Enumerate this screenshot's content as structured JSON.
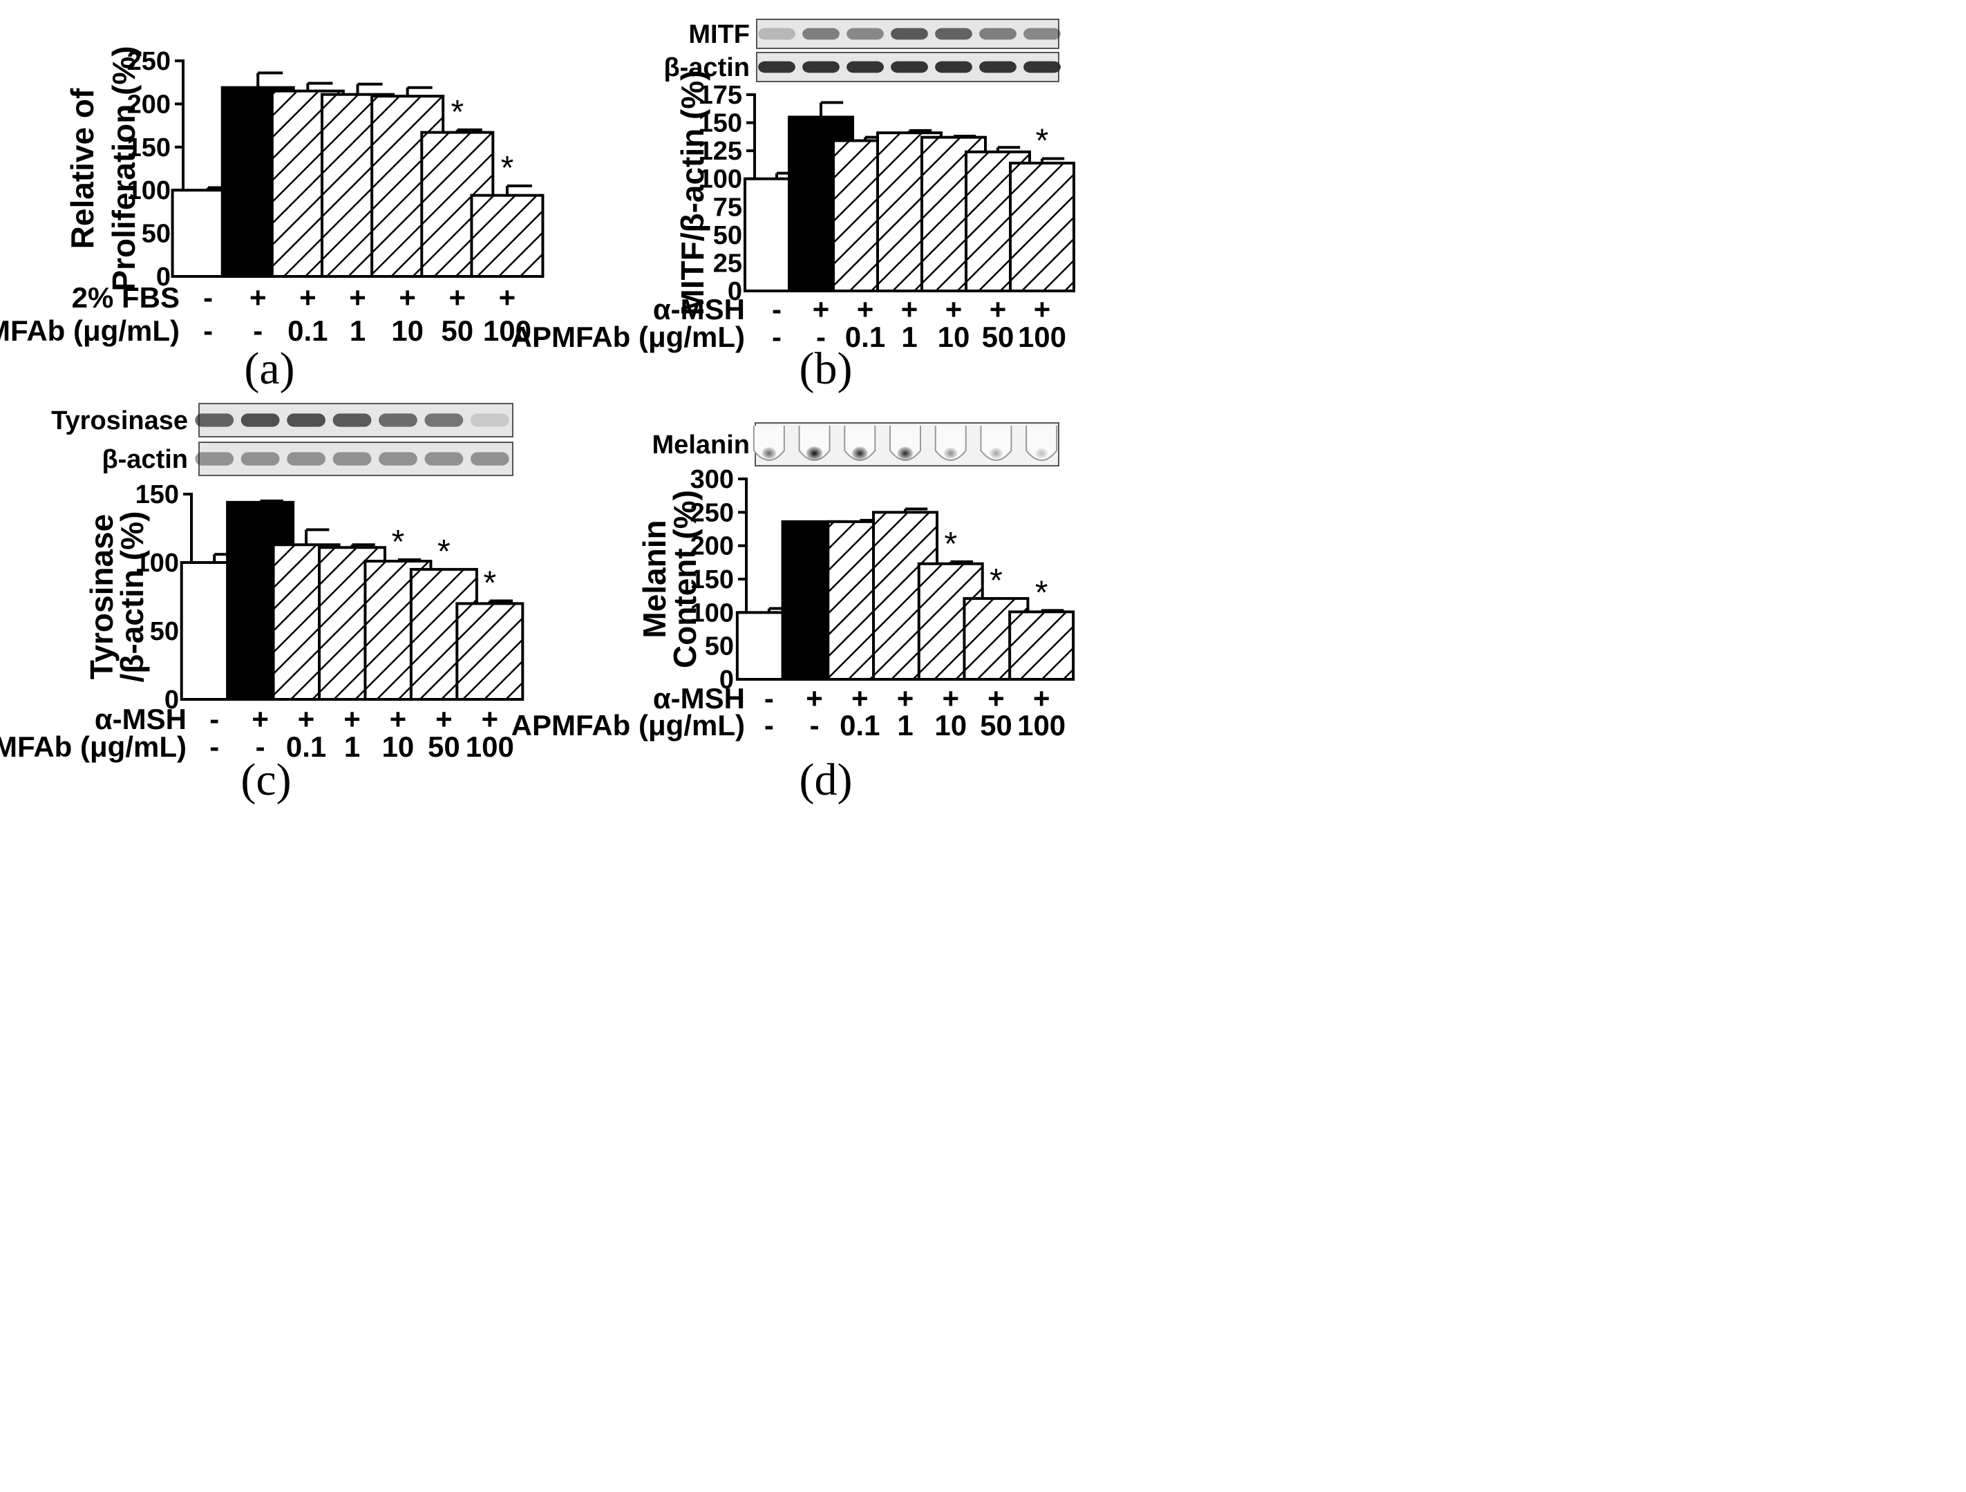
{
  "colors": {
    "ink": "#000000",
    "paper": "#ffffff",
    "blot_bg": "#e6e6e6",
    "band": "#2a2a2a"
  },
  "chart_data": [
    {
      "type": "bar",
      "panel_label": "(a)",
      "ylabel_lines": [
        "Relative of",
        "Proliferation (%)"
      ],
      "ylim": [
        0,
        250
      ],
      "yticks": [
        0,
        50,
        100,
        150,
        200,
        250
      ],
      "categories": [
        "1",
        "2",
        "3",
        "4",
        "5",
        "6",
        "7"
      ],
      "values": [
        100,
        219,
        215,
        211,
        209,
        167,
        94
      ],
      "errors": [
        3,
        17,
        9,
        12,
        10,
        3,
        11
      ],
      "fills": [
        "white",
        "black",
        "hatch",
        "hatch",
        "hatch",
        "hatch",
        "hatch"
      ],
      "significant": [
        false,
        false,
        false,
        false,
        false,
        true,
        true
      ],
      "treatment_rows": [
        {
          "label": "2% FBS",
          "values": [
            "-",
            "+",
            "+",
            "+",
            "+",
            "+",
            "+"
          ]
        },
        {
          "label": "APMFAb (μg/mL)",
          "values": [
            "-",
            "-",
            "0.1",
            "1",
            "10",
            "50",
            "100"
          ]
        }
      ],
      "blots": []
    },
    {
      "type": "bar",
      "panel_label": "(b)",
      "ylabel_lines": [
        "MITF/β-actin (%)"
      ],
      "ylim": [
        0,
        175
      ],
      "yticks": [
        0,
        25,
        50,
        75,
        100,
        125,
        150,
        175
      ],
      "categories": [
        "1",
        "2",
        "3",
        "4",
        "5",
        "6",
        "7"
      ],
      "values": [
        100,
        155,
        134,
        141,
        137,
        124,
        114
      ],
      "errors": [
        5,
        13,
        3,
        2,
        1,
        4,
        4
      ],
      "fills": [
        "white",
        "black",
        "hatch",
        "hatch",
        "hatch",
        "hatch",
        "hatch"
      ],
      "significant": [
        false,
        false,
        false,
        false,
        false,
        false,
        true
      ],
      "treatment_rows": [
        {
          "label": "α-MSH",
          "values": [
            "-",
            "+",
            "+",
            "+",
            "+",
            "+",
            "+"
          ]
        },
        {
          "label": "APMFAb (μg/mL)",
          "values": [
            "-",
            "-",
            "0.1",
            "1",
            "10",
            "50",
            "100"
          ]
        }
      ],
      "blots": [
        {
          "label": "MITF",
          "kind": "band",
          "intensity": [
            0.25,
            0.55,
            0.5,
            0.75,
            0.7,
            0.55,
            0.5
          ]
        },
        {
          "label": "β-actin",
          "kind": "band",
          "intensity": [
            0.95,
            0.95,
            0.95,
            0.95,
            0.95,
            0.95,
            0.95
          ]
        }
      ]
    },
    {
      "type": "bar",
      "panel_label": "(c)",
      "ylabel_lines": [
        "Tyrosinase",
        "/β-actin (%)"
      ],
      "ylim": [
        0,
        150
      ],
      "yticks": [
        0,
        50,
        100,
        150
      ],
      "categories": [
        "1",
        "2",
        "3",
        "4",
        "5",
        "6",
        "7"
      ],
      "values": [
        100,
        144,
        113,
        111,
        101,
        95,
        70
      ],
      "errors": [
        6,
        1,
        11,
        2,
        1,
        0,
        2
      ],
      "fills": [
        "white",
        "black",
        "hatch",
        "hatch",
        "hatch",
        "hatch",
        "hatch"
      ],
      "significant": [
        false,
        false,
        false,
        false,
        true,
        true,
        true
      ],
      "treatment_rows": [
        {
          "label": "α-MSH",
          "values": [
            "-",
            "+",
            "+",
            "+",
            "+",
            "+",
            "+"
          ]
        },
        {
          "label": "APMFAb (μg/mL)",
          "values": [
            "-",
            "-",
            "0.1",
            "1",
            "10",
            "50",
            "100"
          ]
        }
      ],
      "blots": [
        {
          "label": "Tyrosinase",
          "kind": "band",
          "intensity": [
            0.7,
            0.8,
            0.8,
            0.75,
            0.65,
            0.6,
            0.15
          ]
        },
        {
          "label": "β-actin",
          "kind": "band",
          "intensity": [
            0.45,
            0.45,
            0.45,
            0.45,
            0.45,
            0.45,
            0.45
          ]
        }
      ]
    },
    {
      "type": "bar",
      "panel_label": "(d)",
      "ylabel_lines": [
        "Melanin",
        "Content (%)"
      ],
      "ylim": [
        0,
        300
      ],
      "yticks": [
        0,
        50,
        100,
        150,
        200,
        250,
        300
      ],
      "categories": [
        "1",
        "2",
        "3",
        "4",
        "5",
        "6",
        "7"
      ],
      "values": [
        100,
        236,
        236,
        250,
        173,
        121,
        101
      ],
      "errors": [
        6,
        0,
        2,
        5,
        3,
        0,
        2
      ],
      "fills": [
        "white",
        "black",
        "hatch",
        "hatch",
        "hatch",
        "hatch",
        "hatch"
      ],
      "significant": [
        false,
        false,
        false,
        false,
        true,
        true,
        true
      ],
      "treatment_rows": [
        {
          "label": "α-MSH",
          "values": [
            "-",
            "+",
            "+",
            "+",
            "+",
            "+",
            "+"
          ]
        },
        {
          "label": "APMFAb (μg/mL)",
          "values": [
            "-",
            "-",
            "0.1",
            "1",
            "10",
            "50",
            "100"
          ]
        }
      ],
      "blots": [
        {
          "label": "Melanin",
          "kind": "tube",
          "intensity": [
            0.6,
            0.95,
            0.85,
            0.85,
            0.45,
            0.35,
            0.25
          ]
        }
      ]
    }
  ]
}
